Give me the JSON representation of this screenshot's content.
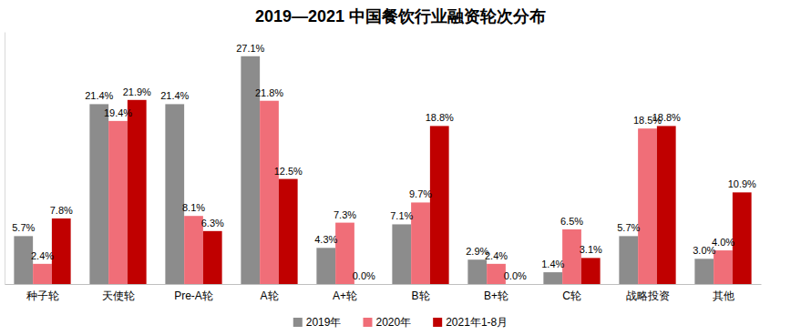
{
  "chart_data": {
    "type": "bar",
    "title": "2019—2021 中国餐饮行业融资轮次分布",
    "categories": [
      "种子轮",
      "天使轮",
      "Pre-A轮",
      "A轮",
      "A+轮",
      "B轮",
      "B+轮",
      "C轮",
      "战略投资",
      "其他"
    ],
    "series": [
      {
        "name": "2019年",
        "color": "#8c8c8c",
        "values": [
          5.7,
          21.4,
          21.4,
          27.1,
          4.3,
          7.1,
          2.9,
          1.4,
          5.7,
          3.0
        ],
        "value_labels": [
          "5.7%",
          "21.4%",
          "21.4%",
          "27.1%",
          "4.3%",
          "7.1%",
          "2.9%",
          "1.4%",
          "5.7%",
          "3.0%"
        ]
      },
      {
        "name": "2020年",
        "color": "#f06e78",
        "values": [
          2.4,
          19.4,
          8.1,
          21.8,
          7.3,
          9.7,
          2.4,
          6.5,
          18.5,
          4.0
        ],
        "value_labels": [
          "2.4%",
          "19.4%",
          "8.1%",
          "21.8%",
          "7.3%",
          "9.7%",
          "2.4%",
          "6.5%",
          "18.5%",
          "4.0%"
        ]
      },
      {
        "name": "2021年1-8月",
        "color": "#c00000",
        "values": [
          7.8,
          21.9,
          6.3,
          12.5,
          0.0,
          18.8,
          0.0,
          3.1,
          18.8,
          10.9
        ],
        "value_labels": [
          "7.8%",
          "21.9%",
          "6.3%",
          "12.5%",
          "0.0%",
          "18.8%",
          "0.0%",
          "3.1%",
          "18.8%",
          "10.9%"
        ]
      }
    ],
    "ylim": [
      0,
      30
    ],
    "grid": false,
    "legend": "bottom",
    "data_labels": true,
    "tick_labels": "x"
  }
}
